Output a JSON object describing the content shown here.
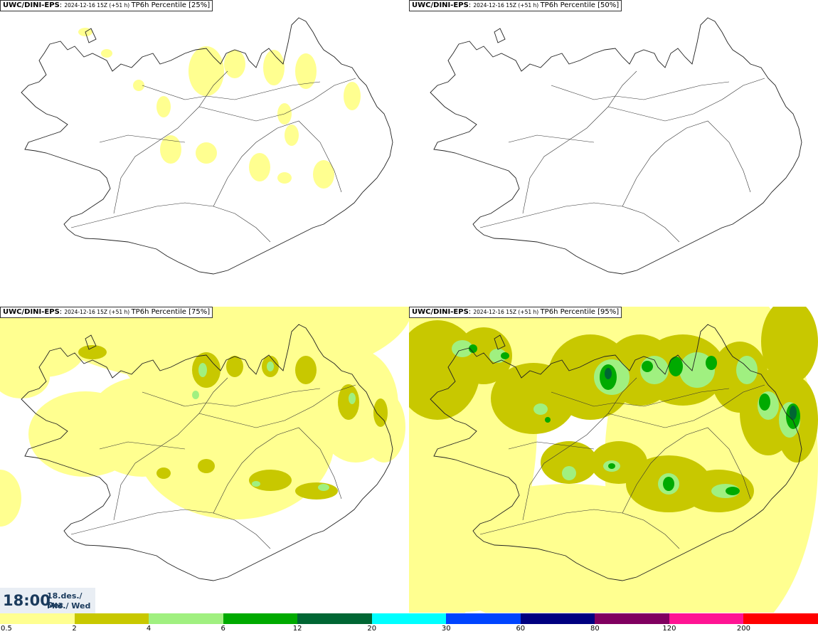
{
  "panels": [
    {
      "model": "UWC/DINI-EPS",
      "run": "2024-12-16 15Z (+51 h)",
      "field": "TP6h Percentile [25%]",
      "level": 25
    },
    {
      "model": "UWC/DINI-EPS",
      "run": "2024-12-16 15Z (+51 h)",
      "field": "TP6h Percentile [50%]",
      "level": 50
    },
    {
      "model": "UWC/DINI-EPS",
      "run": "2024-12-16 15Z (+51 h)",
      "field": "TP6h Percentile [75%]",
      "level": 75
    },
    {
      "model": "UWC/DINI-EPS",
      "run": "2024-12-16 15Z (+51 h)",
      "field": "TP6h Percentile [95%]",
      "level": 95
    }
  ],
  "valid_time": {
    "time": "18:00",
    "date_line1": "18.des./ Dec",
    "date_line2": "Mið./ Wed"
  },
  "legend": {
    "ticks": [
      "0.5",
      "2",
      "4",
      "6",
      "12",
      "20",
      "30",
      "60",
      "80",
      "120",
      "200"
    ],
    "colors": [
      "#ffff90",
      "#c8c800",
      "#a0f080",
      "#00aa00",
      "#006633",
      "#00ffff",
      "#0044ff",
      "#000080",
      "#800060",
      "#ff1493",
      "#ff0000"
    ]
  }
}
